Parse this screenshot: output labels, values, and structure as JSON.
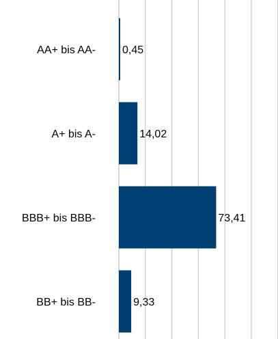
{
  "chart_data": {
    "type": "bar",
    "orientation": "horizontal",
    "categories": [
      "AA+ bis AA-",
      "A+ bis A-",
      "BBB+ bis BBB-",
      "BB+ bis BB-"
    ],
    "values": [
      0.45,
      14.02,
      73.41,
      9.33
    ],
    "value_labels": [
      "0,45",
      "14,02",
      "73,41",
      "9,33"
    ],
    "xlim": [
      0,
      120
    ],
    "x_grid_step": 20,
    "grid": true,
    "title": "",
    "xlabel": "",
    "ylabel": ""
  },
  "colors": {
    "bar": "#003F72",
    "grid": "#C8C8C8",
    "axis": "#BEBEBE",
    "text": "#000000"
  }
}
